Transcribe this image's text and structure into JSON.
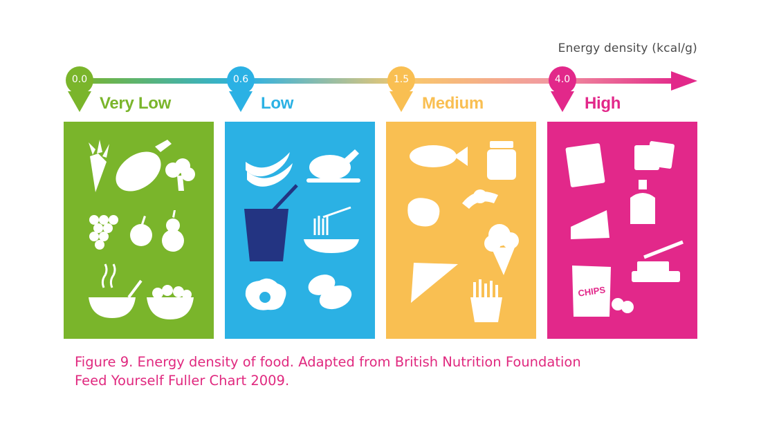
{
  "axis": {
    "title": "Energy density (kcal/g)",
    "line_color_start": "#7ab52b",
    "line_color_end": "#e2288a"
  },
  "categories": [
    {
      "value": "0.0",
      "label": "Very Low",
      "color": "#7ab52b",
      "icons": [
        "carrot-icon",
        "eggplant-icon",
        "broccoli-icon",
        "grapes-icon",
        "apple-icon",
        "pear-icon",
        "soup-bowl-icon",
        "salad-bowl-icon"
      ]
    },
    {
      "value": "0.6",
      "label": "Low",
      "color": "#2bb1e4",
      "icons": [
        "bananas-icon",
        "roast-chicken-icon",
        "yogurt-pot-icon",
        "spaghetti-icon",
        "fried-egg-icon",
        "potatoes-icon"
      ]
    },
    {
      "value": "1.5",
      "label": "Medium",
      "color": "#f9bf52",
      "icons": [
        "fish-icon",
        "jam-jar-icon",
        "steak-icon",
        "croissant-icon",
        "ice-cream-icon",
        "pizza-slice-icon",
        "french-fries-icon"
      ]
    },
    {
      "value": "4.0",
      "label": "High",
      "color": "#e2288a",
      "icons": [
        "chocolate-bar-icon",
        "crackers-icon",
        "oil-bottle-icon",
        "cheese-icon",
        "butter-icon",
        "chips-bag-icon"
      ],
      "chips_text": "CHIPS"
    }
  ],
  "caption": {
    "line1": "Figure 9. Energy density of food. Adapted from British Nutrition Foundation",
    "line2": "Feed Yourself Fuller Chart 2009."
  }
}
